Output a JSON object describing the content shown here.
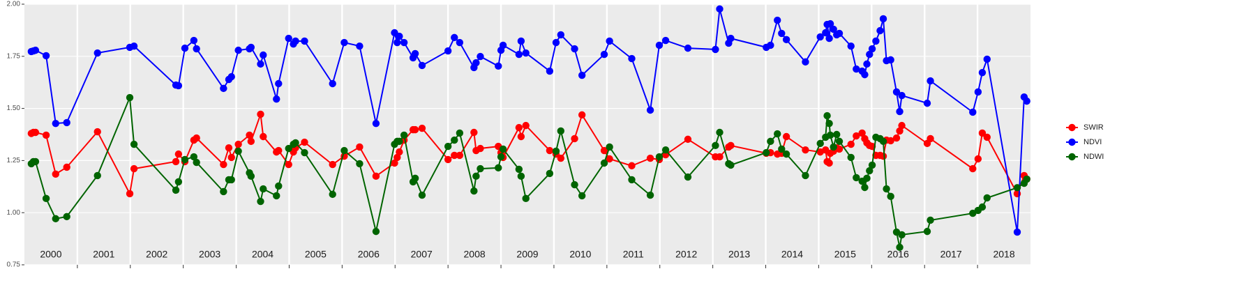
{
  "chart_data": {
    "type": "line",
    "x": [
      2000.13,
      2000.17,
      2000.21,
      2000.41,
      2000.59,
      2000.8,
      2001.38,
      2001.99,
      2002.07,
      2002.86,
      2002.91,
      2003.03,
      2003.2,
      2003.25,
      2003.76,
      2003.86,
      2003.91,
      2004.04,
      2004.25,
      2004.28,
      2004.46,
      2004.51,
      2004.76,
      2004.8,
      2004.99,
      2005.08,
      2005.12,
      2005.29,
      2005.82,
      2006.04,
      2006.33,
      2006.64,
      2006.99,
      2007.04,
      2007.08,
      2007.17,
      2007.34,
      2007.38,
      2007.51,
      2008.0,
      2008.12,
      2008.22,
      2008.49,
      2008.53,
      2008.61,
      2008.95,
      2009.0,
      2009.04,
      2009.34,
      2009.38,
      2009.47,
      2009.92,
      2010.04,
      2010.13,
      2010.39,
      2010.53,
      2010.95,
      2011.05,
      2011.47,
      2011.82,
      2011.99,
      2012.11,
      2012.53,
      2013.05,
      2013.13,
      2013.3,
      2013.34,
      2014.01,
      2014.09,
      2014.22,
      2014.3,
      2014.39,
      2014.75,
      2015.03,
      2015.13,
      2015.16,
      2015.2,
      2015.22,
      2015.28,
      2015.34,
      2015.39,
      2015.61,
      2015.71,
      2015.82,
      2015.87,
      2015.91,
      2015.96,
      2016.01,
      2016.08,
      2016.16,
      2016.22,
      2016.28,
      2016.36,
      2016.47,
      2016.53,
      2016.57,
      2017.05,
      2017.11,
      2017.91,
      2018.01,
      2018.09,
      2018.18,
      2018.75,
      2018.88,
      2018.93
    ],
    "series": [
      {
        "name": "SWIR",
        "color": "#ff0000",
        "values": [
          1.38,
          1.385,
          1.385,
          1.372,
          1.185,
          1.218,
          1.388,
          1.091,
          1.211,
          1.245,
          1.281,
          1.245,
          1.348,
          1.358,
          1.231,
          1.311,
          1.265,
          1.328,
          1.372,
          1.342,
          1.472,
          1.365,
          1.291,
          1.298,
          1.231,
          1.291,
          1.311,
          1.338,
          1.231,
          1.271,
          1.315,
          1.175,
          1.238,
          1.265,
          1.291,
          1.348,
          1.398,
          1.398,
          1.405,
          1.255,
          1.275,
          1.275,
          1.385,
          1.298,
          1.308,
          1.318,
          1.288,
          1.265,
          1.408,
          1.365,
          1.418,
          1.298,
          1.281,
          1.261,
          1.355,
          1.469,
          1.298,
          1.258,
          1.225,
          1.261,
          1.255,
          1.278,
          1.352,
          1.268,
          1.268,
          1.315,
          1.322,
          1.285,
          1.288,
          1.281,
          1.285,
          1.365,
          1.301,
          1.291,
          1.301,
          1.245,
          1.238,
          1.285,
          1.295,
          1.311,
          1.305,
          1.328,
          1.368,
          1.382,
          1.355,
          1.335,
          1.322,
          1.318,
          1.275,
          1.275,
          1.271,
          1.348,
          1.345,
          1.358,
          1.392,
          1.418,
          1.332,
          1.355,
          1.211,
          1.258,
          1.382,
          1.362,
          1.091,
          1.178,
          1.161
        ]
      },
      {
        "name": "NDVI",
        "color": "#0000ff",
        "values": [
          1.773,
          1.776,
          1.779,
          1.753,
          1.428,
          1.432,
          1.766,
          1.793,
          1.799,
          1.612,
          1.609,
          1.789,
          1.826,
          1.786,
          1.596,
          1.639,
          1.652,
          1.779,
          1.786,
          1.793,
          1.713,
          1.756,
          1.545,
          1.619,
          1.836,
          1.809,
          1.823,
          1.823,
          1.619,
          1.816,
          1.799,
          1.428,
          1.863,
          1.816,
          1.846,
          1.816,
          1.743,
          1.763,
          1.706,
          1.776,
          1.84,
          1.816,
          1.696,
          1.719,
          1.749,
          1.703,
          1.779,
          1.803,
          1.759,
          1.823,
          1.766,
          1.679,
          1.816,
          1.853,
          1.786,
          1.659,
          1.759,
          1.823,
          1.739,
          1.492,
          1.803,
          1.826,
          1.789,
          1.783,
          1.977,
          1.813,
          1.836,
          1.793,
          1.803,
          1.923,
          1.86,
          1.83,
          1.723,
          1.843,
          1.863,
          1.903,
          1.836,
          1.906,
          1.88,
          1.853,
          1.86,
          1.799,
          1.689,
          1.679,
          1.662,
          1.713,
          1.759,
          1.786,
          1.823,
          1.873,
          1.93,
          1.729,
          1.733,
          1.579,
          1.485,
          1.562,
          1.525,
          1.632,
          1.482,
          1.579,
          1.672,
          1.736,
          0.907,
          1.555,
          1.535
        ]
      },
      {
        "name": "NDWI",
        "color": "#006400",
        "values": [
          1.235,
          1.245,
          1.245,
          1.068,
          0.971,
          0.981,
          1.178,
          1.552,
          1.328,
          1.108,
          1.148,
          1.255,
          1.268,
          1.241,
          1.101,
          1.158,
          1.158,
          1.295,
          1.191,
          1.175,
          1.054,
          1.114,
          1.081,
          1.128,
          1.308,
          1.328,
          1.335,
          1.288,
          1.088,
          1.298,
          1.235,
          0.91,
          1.328,
          1.342,
          1.342,
          1.372,
          1.148,
          1.165,
          1.084,
          1.318,
          1.348,
          1.382,
          1.104,
          1.175,
          1.211,
          1.215,
          1.268,
          1.305,
          1.208,
          1.175,
          1.068,
          1.188,
          1.295,
          1.392,
          1.134,
          1.081,
          1.238,
          1.315,
          1.158,
          1.084,
          1.268,
          1.301,
          1.171,
          1.322,
          1.385,
          1.235,
          1.228,
          1.288,
          1.342,
          1.378,
          1.305,
          1.281,
          1.178,
          1.332,
          1.362,
          1.465,
          1.428,
          1.372,
          1.315,
          1.375,
          1.342,
          1.265,
          1.168,
          1.151,
          1.121,
          1.165,
          1.201,
          1.228,
          1.362,
          1.355,
          1.342,
          1.114,
          1.078,
          0.907,
          0.834,
          0.894,
          0.91,
          0.964,
          0.997,
          1.011,
          1.027,
          1.071,
          1.12,
          1.141,
          1.161
        ]
      }
    ],
    "xlim": [
      2000,
      2019
    ],
    "xticks": [
      2001,
      2002,
      2003,
      2004,
      2005,
      2006,
      2007,
      2008,
      2009,
      2010,
      2011,
      2012,
      2013,
      2014,
      2015,
      2016,
      2017,
      2018
    ],
    "xlabels": [
      {
        "value": 2000.5,
        "label": "2000"
      },
      {
        "value": 2001.5,
        "label": "2001"
      },
      {
        "value": 2002.5,
        "label": "2002"
      },
      {
        "value": 2003.5,
        "label": "2003"
      },
      {
        "value": 2004.5,
        "label": "2004"
      },
      {
        "value": 2005.5,
        "label": "2005"
      },
      {
        "value": 2006.5,
        "label": "2006"
      },
      {
        "value": 2007.5,
        "label": "2007"
      },
      {
        "value": 2008.5,
        "label": "2008"
      },
      {
        "value": 2009.5,
        "label": "2009"
      },
      {
        "value": 2010.5,
        "label": "2010"
      },
      {
        "value": 2011.5,
        "label": "2011"
      },
      {
        "value": 2012.5,
        "label": "2012"
      },
      {
        "value": 2013.5,
        "label": "2013"
      },
      {
        "value": 2014.5,
        "label": "2014"
      },
      {
        "value": 2015.5,
        "label": "2015"
      },
      {
        "value": 2016.5,
        "label": "2016"
      },
      {
        "value": 2017.5,
        "label": "2017"
      },
      {
        "value": 2018.5,
        "label": "2018"
      }
    ],
    "ylim": [
      0.75,
      2.0
    ],
    "yticks": [
      {
        "value": 0.75,
        "label": "0.75"
      },
      {
        "value": 1.0,
        "label": "1.00"
      },
      {
        "value": 1.25,
        "label": "1.25"
      },
      {
        "value": 1.5,
        "label": "1.50"
      },
      {
        "value": 1.75,
        "label": "1.75"
      },
      {
        "value": 2.0,
        "label": "2.00"
      }
    ],
    "grid": true,
    "legend": "right"
  }
}
